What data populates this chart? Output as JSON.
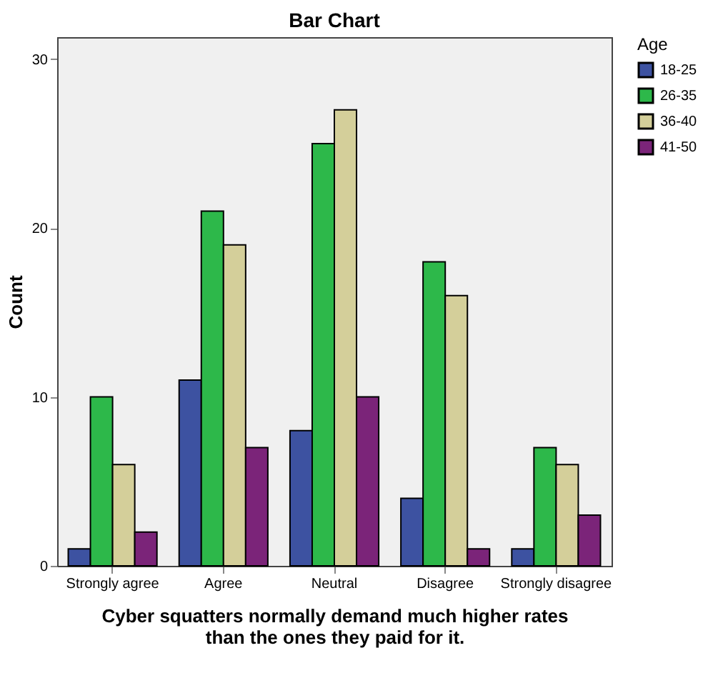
{
  "chart_data": {
    "type": "bar",
    "title": "Bar Chart",
    "xlabel": "Cyber squatters normally demand much higher rates\nthan the ones they paid for it.",
    "ylabel": "Count",
    "legend_title": "Age",
    "categories": [
      "Strongly agree",
      "Agree",
      "Neutral",
      "Disagree",
      "Strongly disagree"
    ],
    "series": [
      {
        "name": "18-25",
        "color": "#3d52a1",
        "values": [
          1,
          11,
          8,
          4,
          1
        ]
      },
      {
        "name": "26-35",
        "color": "#2db84a",
        "values": [
          10,
          21,
          25,
          18,
          7
        ]
      },
      {
        "name": "36-40",
        "color": "#d4cf9a",
        "values": [
          6,
          19,
          27,
          16,
          6
        ]
      },
      {
        "name": "41-50",
        "color": "#7b2479",
        "values": [
          2,
          7,
          10,
          1,
          3
        ]
      }
    ],
    "ylim": [
      0,
      31.3
    ],
    "yticks": [
      0,
      10,
      20,
      30
    ],
    "grid": false,
    "legend": "right"
  }
}
